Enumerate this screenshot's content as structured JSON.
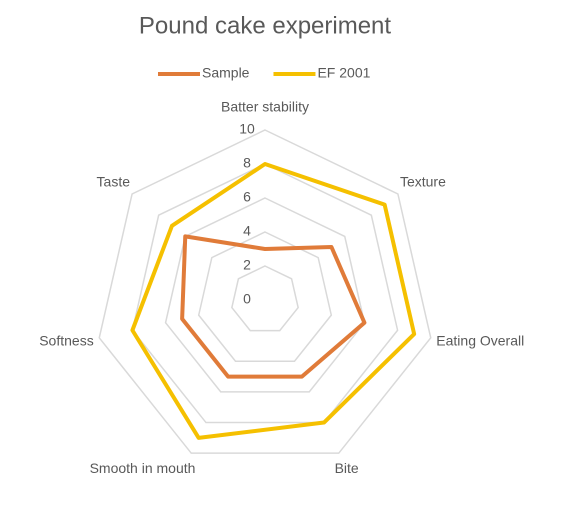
{
  "chart_data": {
    "type": "radar",
    "title": "Pound cake experiment",
    "categories": [
      "Batter stability",
      "Texture",
      "Eating Overall",
      "Bite",
      "Smooth in mouth",
      "Softness",
      "Taste"
    ],
    "series": [
      {
        "name": "Sample",
        "color": "#e07b39",
        "values": [
          3,
          5,
          6,
          5,
          5,
          5,
          6
        ]
      },
      {
        "name": "EF 2001",
        "color": "#f5c000",
        "values": [
          8,
          9,
          9,
          8,
          9,
          8,
          7
        ]
      }
    ],
    "ylim": [
      0,
      10
    ],
    "yticks": [
      0,
      2,
      4,
      6,
      8,
      10
    ],
    "grid": true,
    "legend": "top"
  }
}
